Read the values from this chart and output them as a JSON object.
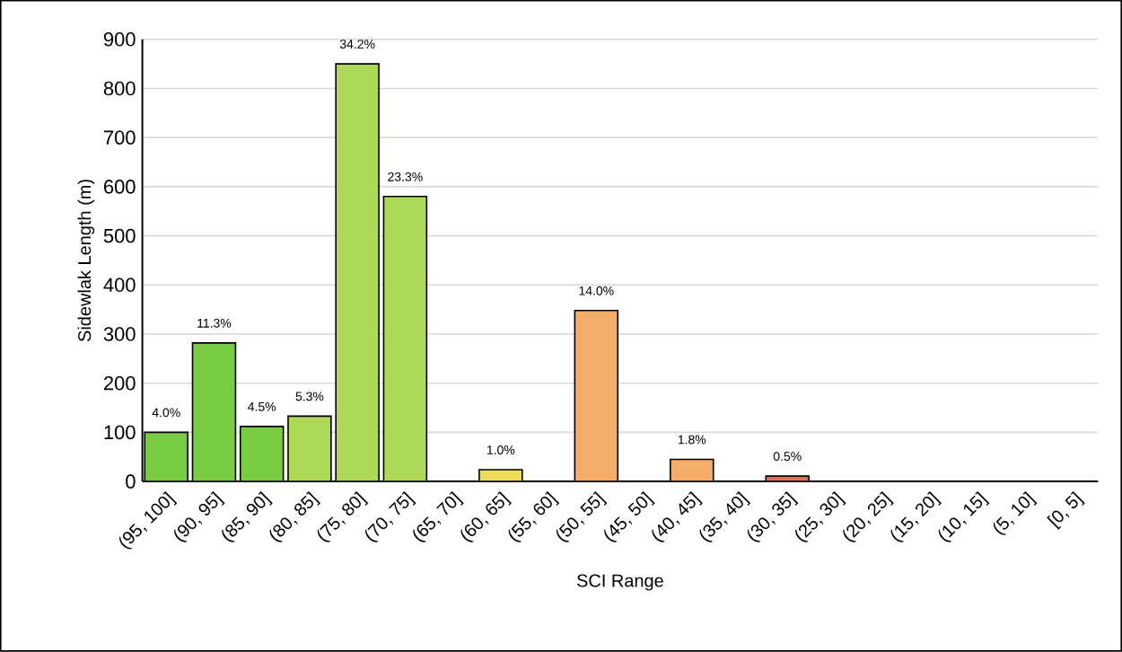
{
  "chart_data": {
    "type": "bar",
    "xlabel": "SCI Range",
    "ylabel": "Sidewlak Length (m)",
    "categories": [
      "(95, 100]",
      "(90, 95]",
      "(85, 90]",
      "(80, 85]",
      "(75, 80]",
      "(70, 75]",
      "(65, 70]",
      "(60, 65]",
      "(55, 60]",
      "(50, 55]",
      "(45, 50]",
      "(40, 45]",
      "(35, 40]",
      "(30, 35]",
      "(25, 30]",
      "(20, 25]",
      "(15, 20]",
      "(10, 15]",
      "(5, 10]",
      "[0, 5]"
    ],
    "values": [
      100,
      282,
      112,
      133,
      850,
      580,
      null,
      24,
      null,
      348,
      null,
      45,
      null,
      11,
      null,
      null,
      null,
      null,
      null,
      null
    ],
    "colors": [
      "#7acc44",
      "#7acc44",
      "#7acc44",
      "#aed957",
      "#aed957",
      "#aed957",
      "#aed957",
      "#eedb5a",
      "#f4ae6a",
      "#f4ae6a",
      "#f4ae6a",
      "#f4ae6a",
      "#d9735a",
      "#d9735a",
      "#d9735a",
      "#d9735a",
      "#d9735a",
      "#d9735a",
      "#d9735a",
      "#d9735a"
    ],
    "annotations": [
      {
        "text": "4.0%",
        "x": "(95, 100]",
        "y": 100
      },
      {
        "text": "11.3%",
        "x": "(90, 95]",
        "y": 282
      },
      {
        "text": "4.5%",
        "x": "(85, 90]",
        "y": 112
      },
      {
        "text": "5.3%",
        "x": "(80, 85]",
        "y": 133
      },
      {
        "text": "34.2%",
        "x": "(75, 80]",
        "y": 850
      },
      {
        "text": "23.3%",
        "x": "(70, 75]",
        "y": 580
      },
      {
        "text": "1.0%",
        "x": "(60, 65]",
        "y": 24
      },
      {
        "text": "14.0%",
        "x": "(50, 55]",
        "y": 348
      },
      {
        "text": "1.8%",
        "x": "(40, 45]",
        "y": 45
      },
      {
        "text": "0.5%",
        "x": "(30, 35]",
        "y": 11
      }
    ],
    "ylim": [
      0,
      900
    ],
    "yticks": [
      0,
      100,
      200,
      300,
      400,
      500,
      600,
      700,
      800,
      900
    ],
    "grid": "y"
  }
}
